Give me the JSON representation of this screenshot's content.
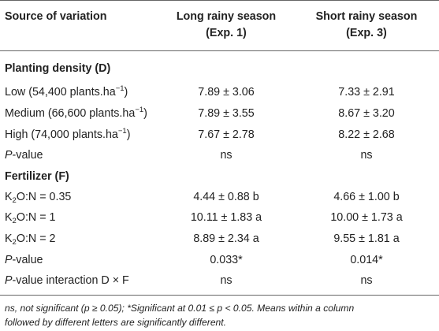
{
  "header": {
    "col1": "Source of variation",
    "col2_line1": "Long rainy season",
    "col2_line2": "(Exp. 1)",
    "col3_line1": "Short rainy season",
    "col3_line2": "(Exp. 3)"
  },
  "density": {
    "title": "Planting density (D)",
    "rows": [
      {
        "label_pre": "Low (54,400 plants.ha",
        "sup": "−1",
        "label_post": ")",
        "exp1": "7.89 ± 3.06",
        "exp3": "7.33 ± 2.91"
      },
      {
        "label_pre": "Medium (66,600 plants.ha",
        "sup": "−1",
        "label_post": ")",
        "exp1": "7.89 ± 3.55",
        "exp3": "8.67 ± 3.20"
      },
      {
        "label_pre": "High (74,000 plants.ha",
        "sup": "−1",
        "label_post": ")",
        "exp1": "7.67 ± 2.78",
        "exp3": "8.22 ± 2.68"
      }
    ],
    "pvalue": {
      "p": "P",
      "rest": "-value",
      "exp1": "ns",
      "exp3": "ns"
    }
  },
  "fertilizer": {
    "title": "Fertilizer (F)",
    "rows": [
      {
        "k": "K",
        "sub": "2",
        "ratio": "O:N = 0.35",
        "exp1": "4.44 ± 0.88 b",
        "exp3": "4.66 ± 1.00 b"
      },
      {
        "k": "K",
        "sub": "2",
        "ratio": "O:N = 1",
        "exp1": "10.11 ± 1.83 a",
        "exp3": "10.00 ± 1.73 a"
      },
      {
        "k": "K",
        "sub": "2",
        "ratio": "O:N = 2",
        "exp1": "8.89 ± 2.34 a",
        "exp3": "9.55 ± 1.81 a"
      }
    ],
    "pvalue": {
      "p": "P",
      "rest": "-value",
      "exp1": "0.033*",
      "exp3": "0.014*"
    },
    "interaction": {
      "p": "P",
      "rest": "-value interaction D × F",
      "exp1": "ns",
      "exp3": "ns"
    }
  },
  "footnote": {
    "line1": "ns, not significant (p ≥ 0.05); *Significant at 0.01 ≤ p < 0.05. Means within a column",
    "line2": "followed by different letters are significantly different."
  }
}
